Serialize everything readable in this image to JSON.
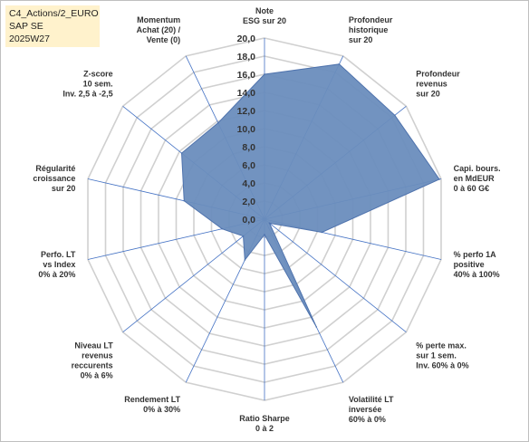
{
  "header_box": {
    "line1": "C4_Actions/2_EURO",
    "line2": "SAP SE",
    "line3": "2025W27"
  },
  "colors": {
    "fill": "#6a8dbd",
    "stroke": "#4f73ad",
    "grid": "#d0d0d0",
    "spoke": "#4472c4",
    "header_bg": "#fff2cc"
  },
  "chart_data": {
    "type": "radar",
    "title": "",
    "rmin": 0,
    "rmax": 20,
    "tick_step": 2,
    "tick_labels": [
      "0,0",
      "2,0",
      "4,0",
      "6,0",
      "8,0",
      "10,0",
      "12,0",
      "14,0",
      "16,0",
      "18,0",
      "20,0"
    ],
    "axes": [
      [
        "Note",
        "ESG sur 20"
      ],
      [
        "Profondeur",
        "historique",
        "sur 20"
      ],
      [
        "Profondeur",
        "revenus",
        "sur 20"
      ],
      [
        "Capi. bours.",
        "en MdEUR",
        "0 à 60 G€"
      ],
      [
        "% perfo 1A",
        "positive",
        "40% à 100%"
      ],
      [
        "% perte max.",
        "sur 1 sem.",
        "Inv. 60% à 0%"
      ],
      [
        "Volatilité LT",
        "inversée",
        "60% à 0%"
      ],
      [
        "Ratio Sharpe",
        "0 à 2"
      ],
      [
        "Rendement LT",
        "0% à 30%"
      ],
      [
        "Niveau LT",
        "revenus",
        "reccurents",
        "0% à 6%"
      ],
      [
        "Perfo. LT",
        "vs Index",
        "0% à 20%"
      ],
      [
        "Régularité",
        "croissance",
        "sur 20"
      ],
      [
        "Z-score",
        "10 sem.",
        "Inv. 2,5 à -2,5"
      ],
      [
        "Momentum",
        "Achat (20) /",
        "Vente (0)"
      ]
    ],
    "values": [
      16.0,
      19.0,
      18.4,
      19.8,
      6.5,
      0.7,
      13.2,
      1.7,
      5.0,
      3.0,
      4.8,
      9.1,
      11.7,
      11.8
    ],
    "grid": true
  }
}
